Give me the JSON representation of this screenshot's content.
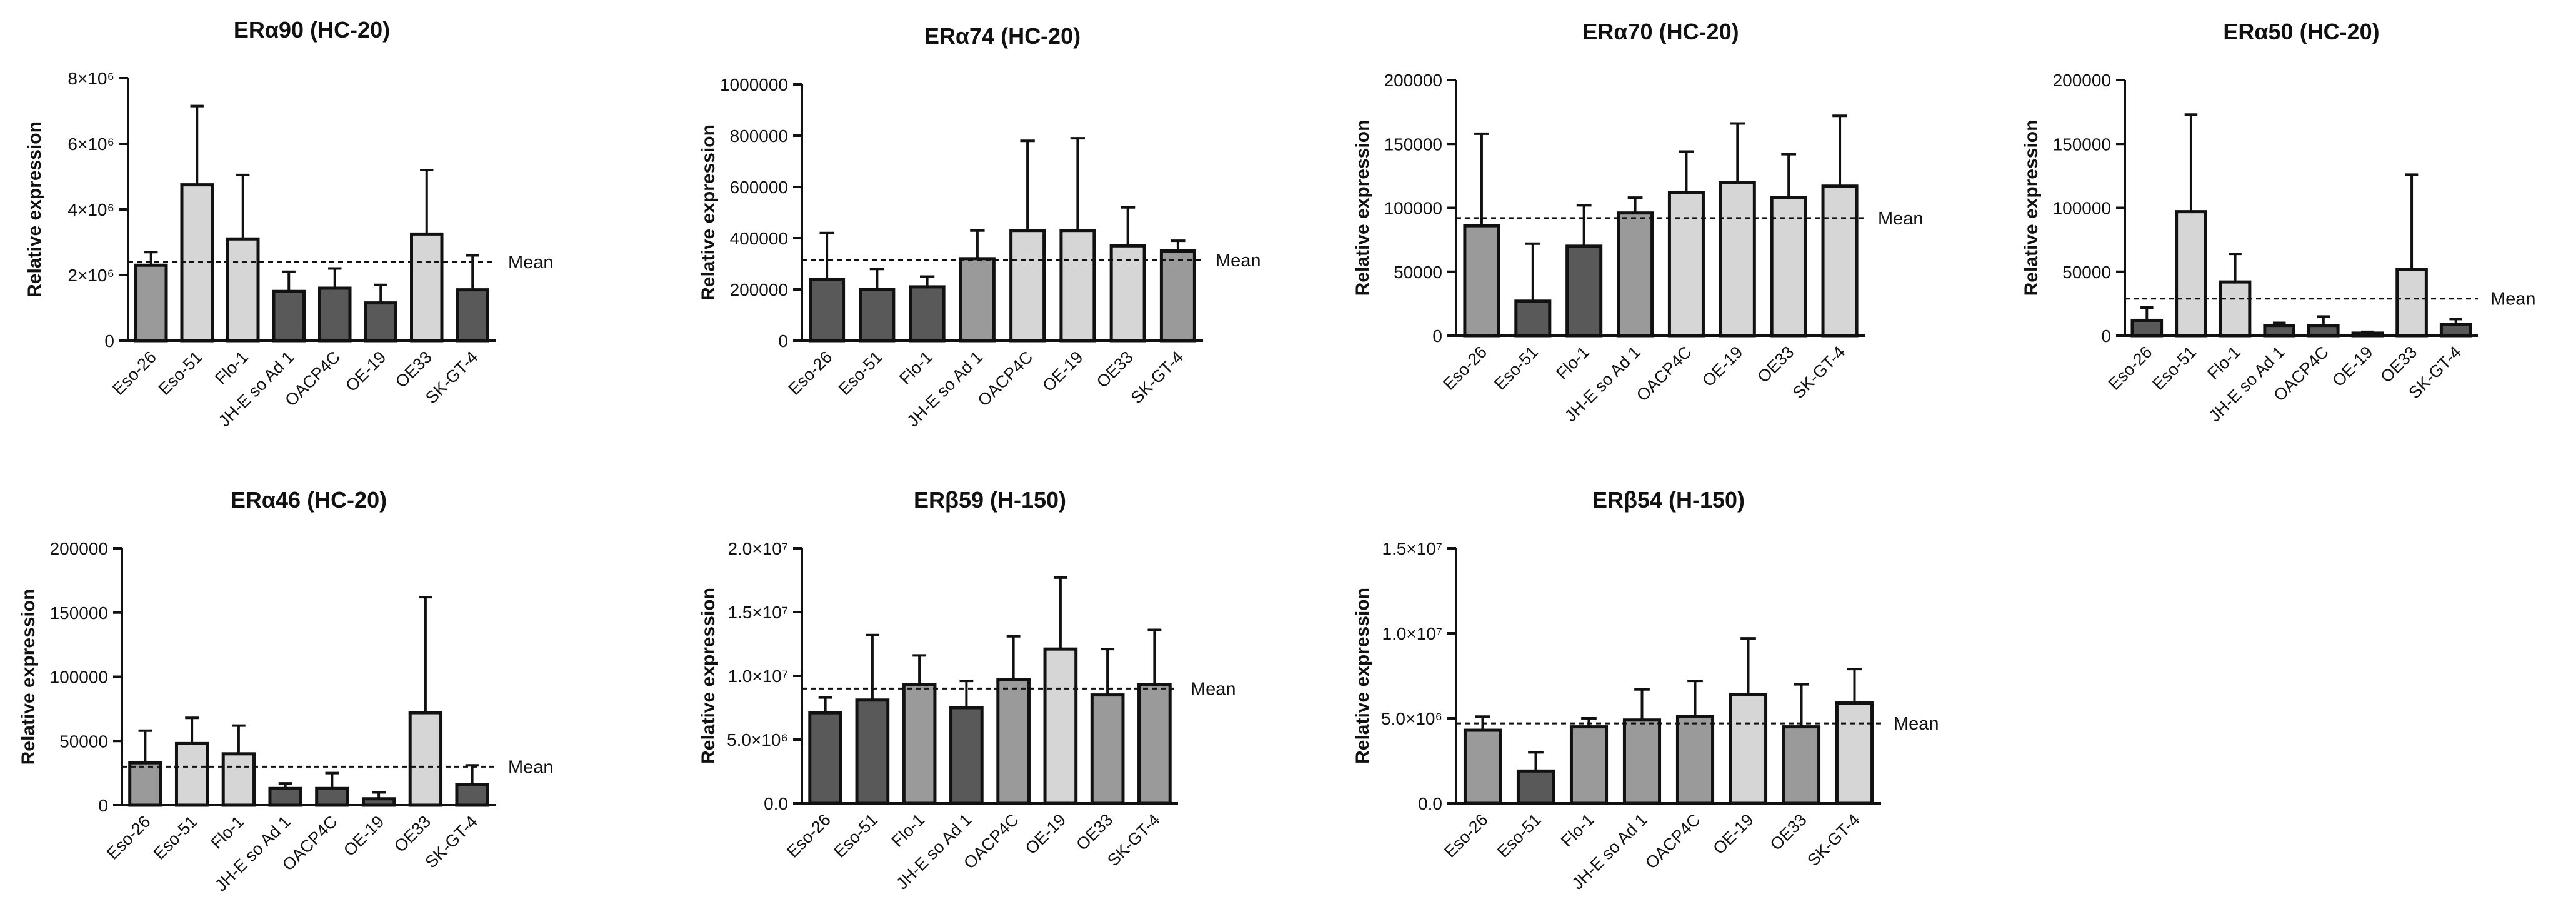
{
  "figure": {
    "y_axis_label": "Relative expression",
    "mean_label": "Mean",
    "colors": {
      "dark": "#595959",
      "medium": "#9a9a9a",
      "light": "#d6d6d6",
      "axis": "#111111"
    }
  },
  "chart_data": [
    {
      "type": "bar",
      "title": "ERα90 (HC-20)",
      "ylabel": "Relative expression",
      "categories": [
        "Eso-26",
        "Eso-51",
        "Flo-1",
        "JH-E so Ad 1",
        "OACP4C",
        "OE-19",
        "OE33",
        "SK-GT-4"
      ],
      "values": [
        2300000,
        4750000,
        3100000,
        1500000,
        1600000,
        1150000,
        3250000,
        1550000
      ],
      "errors": [
        400000,
        2400000,
        1950000,
        600000,
        600000,
        550000,
        1950000,
        1050000
      ],
      "shades": [
        "medium",
        "light",
        "light",
        "dark",
        "dark",
        "dark",
        "light",
        "dark"
      ],
      "mean": 2400000,
      "ylim": [
        0,
        8000000
      ],
      "yticks": [
        0,
        2000000,
        4000000,
        6000000,
        8000000
      ],
      "ytick_labels": [
        "0",
        "2×10⁶",
        "4×10⁶",
        "6×10⁶",
        "8×10⁶"
      ]
    },
    {
      "type": "bar",
      "title": "ERα74 (HC-20)",
      "ylabel": "Relative expression",
      "categories": [
        "Eso-26",
        "Eso-51",
        "Flo-1",
        "JH-E so Ad 1",
        "OACP4C",
        "OE-19",
        "OE33",
        "SK-GT-4"
      ],
      "values": [
        240000,
        200000,
        210000,
        320000,
        430000,
        430000,
        370000,
        350000
      ],
      "errors": [
        180000,
        80000,
        40000,
        110000,
        350000,
        360000,
        150000,
        40000
      ],
      "shades": [
        "dark",
        "dark",
        "dark",
        "medium",
        "light",
        "light",
        "light",
        "medium"
      ],
      "mean": 315000,
      "ylim": [
        0,
        1000000
      ],
      "yticks": [
        0,
        200000,
        400000,
        600000,
        800000,
        1000000
      ],
      "ytick_labels": [
        "0",
        "200000",
        "400000",
        "600000",
        "800000",
        "1000000"
      ]
    },
    {
      "type": "bar",
      "title": "ERα70 (HC-20)",
      "ylabel": "Relative expression",
      "categories": [
        "Eso-26",
        "Eso-51",
        "Flo-1",
        "JH-E so Ad 1",
        "OACP4C",
        "OE-19",
        "OE33",
        "SK-GT-4"
      ],
      "values": [
        86000,
        27000,
        70000,
        96000,
        112000,
        120000,
        108000,
        117000
      ],
      "errors": [
        72000,
        45000,
        32000,
        12000,
        32000,
        46000,
        34000,
        55000
      ],
      "shades": [
        "medium",
        "dark",
        "dark",
        "medium",
        "light",
        "light",
        "light",
        "light"
      ],
      "mean": 92000,
      "ylim": [
        0,
        200000
      ],
      "yticks": [
        0,
        50000,
        100000,
        150000,
        200000
      ],
      "ytick_labels": [
        "0",
        "50000",
        "100000",
        "150000",
        "200000"
      ]
    },
    {
      "type": "bar",
      "title": "ERα50 (HC-20)",
      "ylabel": "Relative expression",
      "categories": [
        "Eso-26",
        "Eso-51",
        "Flo-1",
        "JH-E so Ad 1",
        "OACP4C",
        "OE-19",
        "OE33",
        "SK-GT-4"
      ],
      "values": [
        12000,
        97000,
        42000,
        8000,
        8000,
        2000,
        52000,
        9000
      ],
      "errors": [
        10000,
        76000,
        22000,
        2000,
        7000,
        1000,
        74000,
        4000
      ],
      "shades": [
        "dark",
        "light",
        "light",
        "dark",
        "dark",
        "dark",
        "light",
        "dark"
      ],
      "mean": 29000,
      "ylim": [
        0,
        200000
      ],
      "yticks": [
        0,
        50000,
        100000,
        150000,
        200000
      ],
      "ytick_labels": [
        "0",
        "50000",
        "100000",
        "150000",
        "200000"
      ]
    },
    {
      "type": "bar",
      "title": "ERα46 (HC-20)",
      "ylabel": "Relative expression",
      "categories": [
        "Eso-26",
        "Eso-51",
        "Flo-1",
        "JH-E so Ad 1",
        "OACP4C",
        "OE-19",
        "OE33",
        "SK-GT-4"
      ],
      "values": [
        33000,
        48000,
        40000,
        13000,
        13000,
        5000,
        72000,
        16000
      ],
      "errors": [
        25000,
        20000,
        22000,
        4000,
        12000,
        5000,
        90000,
        15000
      ],
      "shades": [
        "medium",
        "light",
        "light",
        "dark",
        "dark",
        "dark",
        "light",
        "dark"
      ],
      "mean": 30000,
      "ylim": [
        0,
        200000
      ],
      "yticks": [
        0,
        50000,
        100000,
        150000,
        200000
      ],
      "ytick_labels": [
        "0",
        "50000",
        "100000",
        "150000",
        "200000"
      ]
    },
    {
      "type": "bar",
      "title": "ERβ59 (H-150)",
      "ylabel": "Relative expression",
      "categories": [
        "Eso-26",
        "Eso-51",
        "Flo-1",
        "JH-E so Ad 1",
        "OACP4C",
        "OE-19",
        "OE33",
        "SK-GT-4"
      ],
      "values": [
        7100000,
        8100000,
        9300000,
        7500000,
        9700000,
        12100000,
        8500000,
        9300000
      ],
      "errors": [
        1200000,
        5100000,
        2300000,
        2100000,
        3400000,
        5600000,
        3600000,
        4300000
      ],
      "shades": [
        "dark",
        "dark",
        "medium",
        "dark",
        "medium",
        "light",
        "medium",
        "medium"
      ],
      "mean": 9000000,
      "ylim": [
        0,
        20000000
      ],
      "yticks": [
        0,
        5000000,
        10000000,
        15000000,
        20000000
      ],
      "ytick_labels": [
        "0.0",
        "5.0×10⁶",
        "1.0×10⁷",
        "1.5×10⁷",
        "2.0×10⁷"
      ]
    },
    {
      "type": "bar",
      "title": "ERβ54 (H-150)",
      "ylabel": "Relative expression",
      "categories": [
        "Eso-26",
        "Eso-51",
        "Flo-1",
        "JH-E so Ad 1",
        "OACP4C",
        "OE-19",
        "OE33",
        "SK-GT-4"
      ],
      "values": [
        4300000,
        1900000,
        4500000,
        4900000,
        5100000,
        6400000,
        4500000,
        5900000
      ],
      "errors": [
        800000,
        1100000,
        500000,
        1800000,
        2100000,
        3300000,
        2500000,
        2000000
      ],
      "shades": [
        "medium",
        "dark",
        "medium",
        "medium",
        "medium",
        "light",
        "medium",
        "light"
      ],
      "mean": 4700000,
      "ylim": [
        0,
        15000000
      ],
      "yticks": [
        0,
        5000000,
        10000000,
        15000000
      ],
      "ytick_labels": [
        "0.0",
        "5.0×10⁶",
        "1.0×10⁷",
        "1.5×10⁷"
      ]
    }
  ]
}
